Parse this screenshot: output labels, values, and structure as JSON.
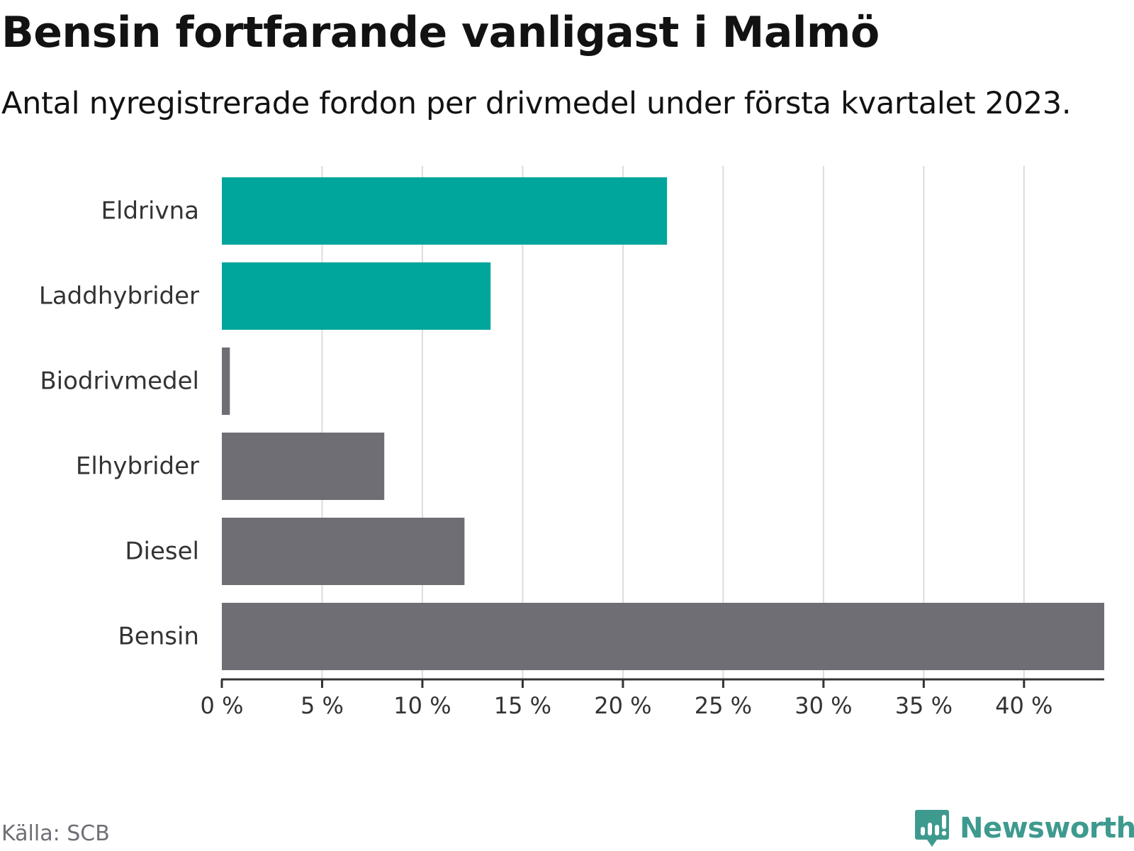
{
  "header": {
    "title": "Bensin fortfarande vanligast i Malmö",
    "subtitle": "Antal nyregistrerade fordon per drivmedel under första kvartalet 2023."
  },
  "footer": {
    "source": "Källa: SCB",
    "brand": "Newsworthy",
    "brand_icon": "newsworthy-logo-icon",
    "brand_color": "#3e9a8e"
  },
  "chart_data": {
    "type": "bar",
    "orientation": "horizontal",
    "categories": [
      "Eldrivna",
      "Laddhybrider",
      "Biodrivmedel",
      "Elhybrider",
      "Diesel",
      "Bensin"
    ],
    "values": [
      22.2,
      13.4,
      0.4,
      8.1,
      12.1,
      44.0
    ],
    "bar_colors": [
      "#00a59b",
      "#00a59b",
      "#6f6e75",
      "#6f6e75",
      "#6f6e75",
      "#6f6e75"
    ],
    "xlim": [
      0,
      44
    ],
    "xticks": [
      0,
      5,
      10,
      15,
      20,
      25,
      30,
      35,
      40
    ],
    "xtick_labels": [
      "0 %",
      "5 %",
      "10 %",
      "15 %",
      "20 %",
      "25 %",
      "30 %",
      "35 %",
      "40 %"
    ],
    "xlabel": "",
    "ylabel": "",
    "grid": "vertical",
    "grid_color": "#dcdcdc",
    "axis_color": "#333333",
    "label_color": "#333333"
  }
}
